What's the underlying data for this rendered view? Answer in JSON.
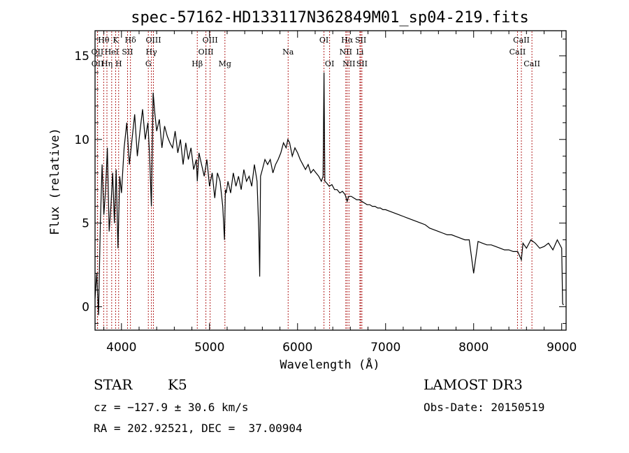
{
  "chart_data": {
    "type": "line",
    "title": "spec-57162-HD133117N362849M01_sp04-219.fits",
    "xlabel": "Wavelength (Å)",
    "ylabel": "Flux (relative)",
    "xlim": [
      3700,
      9050
    ],
    "ylim": [
      -1.4,
      16.5
    ],
    "xticks": [
      4000,
      5000,
      6000,
      7000,
      8000,
      9000
    ],
    "yticks": [
      0,
      5,
      10,
      15
    ],
    "series": [
      {
        "name": "flux",
        "x": [
          3700,
          3720,
          3740,
          3760,
          3780,
          3800,
          3820,
          3840,
          3860,
          3880,
          3900,
          3920,
          3940,
          3960,
          3980,
          4000,
          4030,
          4060,
          4090,
          4120,
          4150,
          4180,
          4210,
          4240,
          4270,
          4300,
          4320,
          4340,
          4360,
          4380,
          4400,
          4430,
          4460,
          4490,
          4520,
          4550,
          4580,
          4610,
          4640,
          4670,
          4700,
          4730,
          4760,
          4790,
          4820,
          4850,
          4861,
          4880,
          4910,
          4940,
          4970,
          5000,
          5030,
          5060,
          5090,
          5120,
          5150,
          5170,
          5180,
          5190,
          5210,
          5240,
          5270,
          5300,
          5330,
          5360,
          5390,
          5420,
          5450,
          5480,
          5510,
          5540,
          5560,
          5570,
          5580,
          5600,
          5630,
          5660,
          5690,
          5720,
          5750,
          5780,
          5810,
          5840,
          5870,
          5890,
          5910,
          5940,
          5970,
          6000,
          6030,
          6060,
          6090,
          6120,
          6150,
          6180,
          6210,
          6240,
          6270,
          6290,
          6300,
          6310,
          6330,
          6360,
          6390,
          6420,
          6450,
          6480,
          6510,
          6540,
          6563,
          6580,
          6610,
          6640,
          6670,
          6700,
          6730,
          6760,
          6790,
          6820,
          6850,
          6880,
          6910,
          6940,
          6970,
          7000,
          7050,
          7100,
          7150,
          7200,
          7250,
          7300,
          7350,
          7400,
          7450,
          7500,
          7550,
          7600,
          7650,
          7700,
          7750,
          7800,
          7850,
          7900,
          7950,
          8000,
          8050,
          8100,
          8150,
          8200,
          8250,
          8300,
          8350,
          8400,
          8450,
          8500,
          8542,
          8560,
          8600,
          8650,
          8700,
          8750,
          8800,
          8850,
          8900,
          8950,
          9000,
          9010,
          9020
        ],
        "y": [
          0.5,
          2.0,
          -0.5,
          5.0,
          8.5,
          5.5,
          7.0,
          9.5,
          4.5,
          6.0,
          8.0,
          5.0,
          8.2,
          3.5,
          7.8,
          6.8,
          9.5,
          11.0,
          8.5,
          10.0,
          11.5,
          9.0,
          10.5,
          11.8,
          10.0,
          11.0,
          9.0,
          6.0,
          12.8,
          11.5,
          10.5,
          11.2,
          9.5,
          10.8,
          10.2,
          9.8,
          9.5,
          10.5,
          9.2,
          10.0,
          8.5,
          9.8,
          8.8,
          9.5,
          8.2,
          8.8,
          7.5,
          9.2,
          8.5,
          7.8,
          8.8,
          7.2,
          8.0,
          6.5,
          8.0,
          7.5,
          6.0,
          4.0,
          7.0,
          6.8,
          7.5,
          6.8,
          8.0,
          7.2,
          7.8,
          7.0,
          8.2,
          7.5,
          7.8,
          7.2,
          8.5,
          7.5,
          4.5,
          1.8,
          7.8,
          8.2,
          8.8,
          8.5,
          8.8,
          8.0,
          8.5,
          8.8,
          9.2,
          9.8,
          9.5,
          10.0,
          9.8,
          9.0,
          9.5,
          9.2,
          8.8,
          8.5,
          8.2,
          8.5,
          8.0,
          8.2,
          8.0,
          7.8,
          7.5,
          7.8,
          14.0,
          7.5,
          7.4,
          7.2,
          7.3,
          7.0,
          7.0,
          6.8,
          6.9,
          6.7,
          6.3,
          6.6,
          6.6,
          6.5,
          6.4,
          6.4,
          6.3,
          6.2,
          6.1,
          6.1,
          6.0,
          6.0,
          5.9,
          5.9,
          5.8,
          5.8,
          5.7,
          5.6,
          5.5,
          5.4,
          5.3,
          5.2,
          5.1,
          5.0,
          4.9,
          4.7,
          4.6,
          4.5,
          4.4,
          4.3,
          4.3,
          4.2,
          4.1,
          4.0,
          4.0,
          2.0,
          3.9,
          3.8,
          3.7,
          3.7,
          3.6,
          3.5,
          3.4,
          3.4,
          3.3,
          3.3,
          2.8,
          3.8,
          3.5,
          4.0,
          3.8,
          3.5,
          3.6,
          3.8,
          3.4,
          4.0,
          3.5,
          0.2,
          0.1
        ]
      }
    ],
    "lines": [
      {
        "label": "Hθ",
        "wl": 3798,
        "row": 0
      },
      {
        "label": "OII",
        "wl": 3727,
        "row": 1
      },
      {
        "label": "OII",
        "wl": 3729,
        "row": 2
      },
      {
        "label": "Hη",
        "wl": 3835,
        "row": 2
      },
      {
        "label": "K",
        "wl": 3934,
        "row": 0
      },
      {
        "label": "HeI",
        "wl": 3889,
        "row": 1
      },
      {
        "label": "H",
        "wl": 3968,
        "row": 2
      },
      {
        "label": "Hδ",
        "wl": 4102,
        "row": 0
      },
      {
        "label": "SII",
        "wl": 4069,
        "row": 1
      },
      {
        "label": "OIII",
        "wl": 4363,
        "row": 0
      },
      {
        "label": "Hγ",
        "wl": 4340,
        "row": 1
      },
      {
        "label": "G",
        "wl": 4305,
        "row": 2
      },
      {
        "label": "Hβ",
        "wl": 4861,
        "row": 2
      },
      {
        "label": "OIII",
        "wl": 5007,
        "row": 0
      },
      {
        "label": "OIII",
        "wl": 4959,
        "row": 1
      },
      {
        "label": "Mg",
        "wl": 5175,
        "row": 2
      },
      {
        "label": "Na",
        "wl": 5893,
        "row": 1
      },
      {
        "label": "OI",
        "wl": 6300,
        "row": 0
      },
      {
        "label": "OI",
        "wl": 6364,
        "row": 2
      },
      {
        "label": "Hα",
        "wl": 6563,
        "row": 0
      },
      {
        "label": "NII",
        "wl": 6548,
        "row": 1
      },
      {
        "label": "NII",
        "wl": 6584,
        "row": 2
      },
      {
        "label": "SII",
        "wl": 6717,
        "row": 0
      },
      {
        "label": "Li",
        "wl": 6708,
        "row": 1
      },
      {
        "label": "SII",
        "wl": 6731,
        "row": 2
      },
      {
        "label": "CaII",
        "wl": 8542,
        "row": 0
      },
      {
        "label": "CaII",
        "wl": 8498,
        "row": 1
      },
      {
        "label": "CaII",
        "wl": 8662,
        "row": 2
      }
    ]
  },
  "info": {
    "class": "STAR",
    "subclass": "K5",
    "survey": "LAMOST DR3",
    "cz": "cz = −127.9 ± 30.6 km/s",
    "obs_date": "Obs-Date: 20150519",
    "coords": "RA = 202.92521, DEC =  37.00904"
  },
  "colors": {
    "spectrum": "#000000",
    "line_marker": "#b22222",
    "axes": "#000000"
  }
}
